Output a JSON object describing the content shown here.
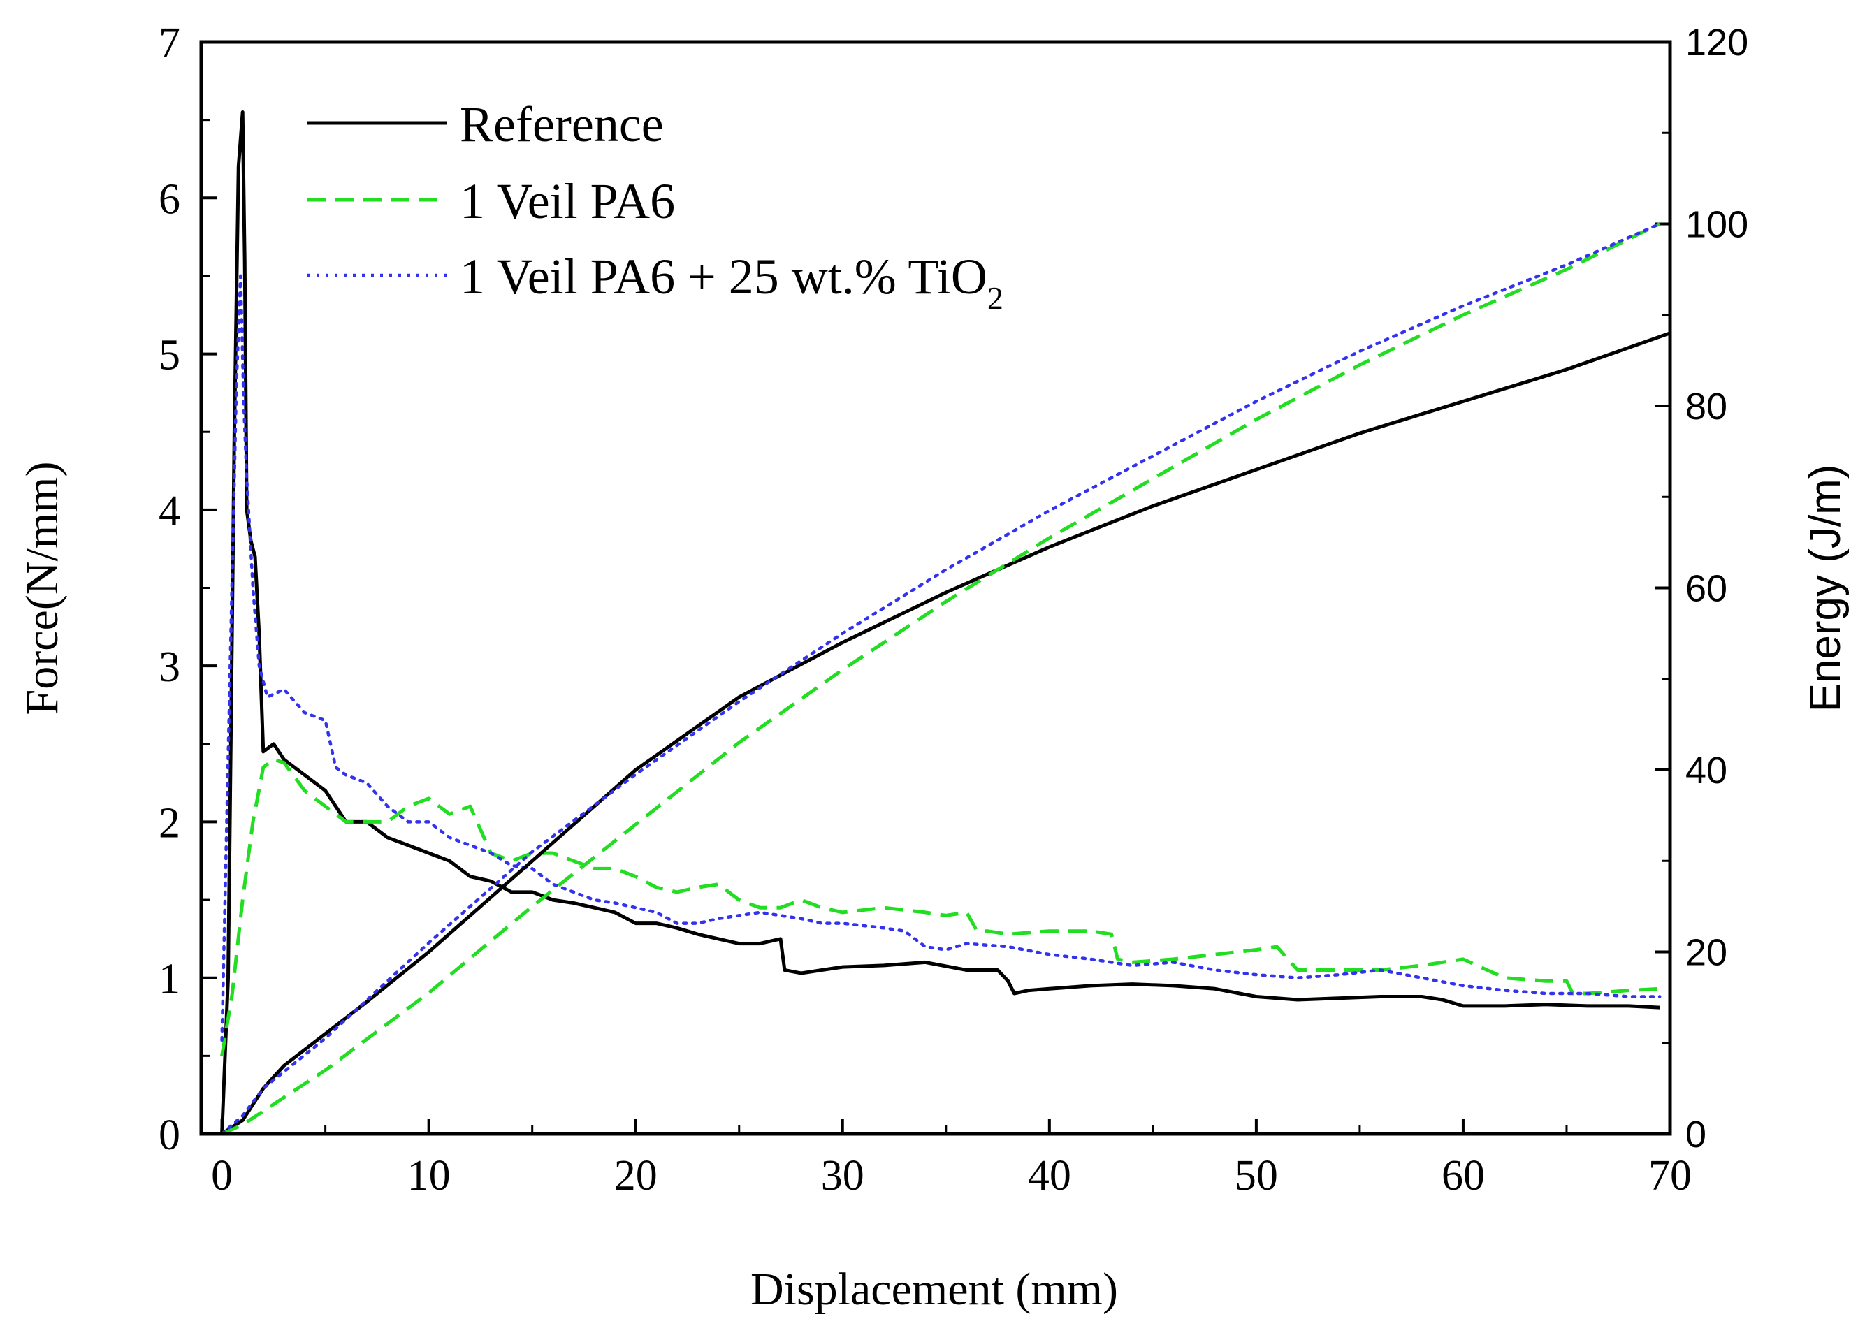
{
  "chart_data": {
    "type": "line",
    "xlabel": "Displacement (mm)",
    "ylabel": "Force(N/mm)",
    "y2label": "Energy (J/m)",
    "xlim": [
      -1,
      70
    ],
    "ylim": [
      0,
      7
    ],
    "y2lim": [
      0,
      120
    ],
    "xticks": [
      "0",
      "10",
      "20",
      "30",
      "40",
      "50",
      "60",
      "70"
    ],
    "yticks": [
      "0",
      "1",
      "2",
      "3",
      "4",
      "5",
      "6",
      "7"
    ],
    "y2ticks": [
      "0",
      "20",
      "40",
      "60",
      "80",
      "100",
      "120"
    ],
    "legend_position": "top-left",
    "legend": [
      {
        "label": "Reference",
        "color": "#000000",
        "style": "solid"
      },
      {
        "label": "1 Veil PA6",
        "color": "#22dd22",
        "style": "dashed"
      },
      {
        "label_main": "1 Veil PA6 + 25 wt.% TiO",
        "label_sub": "2",
        "color": "#3333ee",
        "style": "dotted"
      }
    ],
    "series": [
      {
        "name": "Reference force",
        "axis": "left",
        "color": "#000000",
        "style": "solid",
        "points": [
          [
            0,
            0
          ],
          [
            0.3,
            1.0
          ],
          [
            0.6,
            4.5
          ],
          [
            0.8,
            6.2
          ],
          [
            1.0,
            6.55
          ],
          [
            1.1,
            5.6
          ],
          [
            1.2,
            4.0
          ],
          [
            1.4,
            3.8
          ],
          [
            1.6,
            3.7
          ],
          [
            1.8,
            3.2
          ],
          [
            2.0,
            2.45
          ],
          [
            2.5,
            2.5
          ],
          [
            3.0,
            2.4
          ],
          [
            4.0,
            2.3
          ],
          [
            5.0,
            2.2
          ],
          [
            6.0,
            2.0
          ],
          [
            7.0,
            2.0
          ],
          [
            8.0,
            1.9
          ],
          [
            9.0,
            1.85
          ],
          [
            10.0,
            1.8
          ],
          [
            11.0,
            1.75
          ],
          [
            12.0,
            1.65
          ],
          [
            13.0,
            1.62
          ],
          [
            14.0,
            1.55
          ],
          [
            15.0,
            1.55
          ],
          [
            16.0,
            1.5
          ],
          [
            17.0,
            1.48
          ],
          [
            18.0,
            1.45
          ],
          [
            19.0,
            1.42
          ],
          [
            20.0,
            1.35
          ],
          [
            21.0,
            1.35
          ],
          [
            22.0,
            1.32
          ],
          [
            23.0,
            1.28
          ],
          [
            24.0,
            1.25
          ],
          [
            25.0,
            1.22
          ],
          [
            26.0,
            1.22
          ],
          [
            27.0,
            1.25
          ],
          [
            27.2,
            1.05
          ],
          [
            28.0,
            1.03
          ],
          [
            29.0,
            1.05
          ],
          [
            30.0,
            1.07
          ],
          [
            32.0,
            1.08
          ],
          [
            34.0,
            1.1
          ],
          [
            36.0,
            1.05
          ],
          [
            37.5,
            1.05
          ],
          [
            38.0,
            0.98
          ],
          [
            38.3,
            0.9
          ],
          [
            39.0,
            0.92
          ],
          [
            40.0,
            0.93
          ],
          [
            42.0,
            0.95
          ],
          [
            44.0,
            0.96
          ],
          [
            46.0,
            0.95
          ],
          [
            48.0,
            0.93
          ],
          [
            50.0,
            0.88
          ],
          [
            52.0,
            0.86
          ],
          [
            54.0,
            0.87
          ],
          [
            56.0,
            0.88
          ],
          [
            58.0,
            0.88
          ],
          [
            59.0,
            0.86
          ],
          [
            60.0,
            0.82
          ],
          [
            62.0,
            0.82
          ],
          [
            64.0,
            0.83
          ],
          [
            66.0,
            0.82
          ],
          [
            68.0,
            0.82
          ],
          [
            69.5,
            0.81
          ]
        ]
      },
      {
        "name": "1 Veil PA6 force",
        "axis": "left",
        "color": "#22dd22",
        "style": "dashed",
        "points": [
          [
            0,
            0.5
          ],
          [
            0.5,
            0.9
          ],
          [
            1.0,
            1.5
          ],
          [
            1.5,
            2.0
          ],
          [
            2.0,
            2.35
          ],
          [
            2.5,
            2.4
          ],
          [
            3.0,
            2.38
          ],
          [
            4.0,
            2.2
          ],
          [
            5.0,
            2.1
          ],
          [
            6.0,
            2.0
          ],
          [
            7.0,
            2.0
          ],
          [
            8.0,
            2.0
          ],
          [
            9.0,
            2.1
          ],
          [
            10.0,
            2.15
          ],
          [
            11.0,
            2.05
          ],
          [
            12.0,
            2.1
          ],
          [
            13.0,
            1.8
          ],
          [
            14.0,
            1.75
          ],
          [
            15.0,
            1.8
          ],
          [
            16.0,
            1.8
          ],
          [
            17.0,
            1.75
          ],
          [
            18.0,
            1.7
          ],
          [
            19.0,
            1.7
          ],
          [
            20.0,
            1.65
          ],
          [
            21.0,
            1.58
          ],
          [
            22.0,
            1.55
          ],
          [
            23.0,
            1.58
          ],
          [
            24.0,
            1.6
          ],
          [
            25.0,
            1.5
          ],
          [
            26.0,
            1.45
          ],
          [
            27.0,
            1.45
          ],
          [
            28.0,
            1.5
          ],
          [
            29.0,
            1.45
          ],
          [
            30.0,
            1.42
          ],
          [
            32.0,
            1.45
          ],
          [
            34.0,
            1.42
          ],
          [
            35.0,
            1.4
          ],
          [
            36.0,
            1.42
          ],
          [
            36.5,
            1.3
          ],
          [
            37.0,
            1.3
          ],
          [
            38.0,
            1.28
          ],
          [
            40.0,
            1.3
          ],
          [
            42.0,
            1.3
          ],
          [
            43.0,
            1.28
          ],
          [
            43.3,
            1.12
          ],
          [
            44.0,
            1.1
          ],
          [
            46.0,
            1.12
          ],
          [
            48.0,
            1.15
          ],
          [
            50.0,
            1.18
          ],
          [
            51.0,
            1.2
          ],
          [
            52.0,
            1.05
          ],
          [
            54.0,
            1.05
          ],
          [
            56.0,
            1.05
          ],
          [
            58.0,
            1.08
          ],
          [
            60.0,
            1.12
          ],
          [
            62.0,
            1.0
          ],
          [
            64.0,
            0.98
          ],
          [
            65.0,
            0.98
          ],
          [
            65.3,
            0.9
          ],
          [
            66.0,
            0.9
          ],
          [
            68.0,
            0.92
          ],
          [
            69.5,
            0.93
          ]
        ]
      },
      {
        "name": "1 Veil PA6 + 25 wt.% TiO2 force",
        "axis": "left",
        "color": "#3333ee",
        "style": "dotted",
        "points": [
          [
            0,
            0.6
          ],
          [
            0.4,
            3.0
          ],
          [
            0.7,
            4.8
          ],
          [
            0.9,
            5.5
          ],
          [
            1.05,
            4.7
          ],
          [
            1.2,
            4.2
          ],
          [
            1.5,
            3.5
          ],
          [
            1.8,
            3.0
          ],
          [
            2.2,
            2.8
          ],
          [
            3.0,
            2.85
          ],
          [
            4.0,
            2.7
          ],
          [
            5.0,
            2.65
          ],
          [
            5.5,
            2.35
          ],
          [
            6.0,
            2.3
          ],
          [
            7.0,
            2.25
          ],
          [
            8.0,
            2.1
          ],
          [
            9.0,
            2.0
          ],
          [
            10.0,
            2.0
          ],
          [
            11.0,
            1.9
          ],
          [
            12.0,
            1.85
          ],
          [
            13.0,
            1.8
          ],
          [
            14.0,
            1.72
          ],
          [
            15.0,
            1.7
          ],
          [
            16.0,
            1.6
          ],
          [
            17.0,
            1.55
          ],
          [
            18.0,
            1.5
          ],
          [
            19.0,
            1.48
          ],
          [
            20.0,
            1.45
          ],
          [
            21.0,
            1.42
          ],
          [
            22.0,
            1.35
          ],
          [
            23.0,
            1.35
          ],
          [
            24.0,
            1.38
          ],
          [
            25.0,
            1.4
          ],
          [
            26.0,
            1.42
          ],
          [
            27.0,
            1.4
          ],
          [
            28.0,
            1.38
          ],
          [
            29.0,
            1.35
          ],
          [
            30.0,
            1.35
          ],
          [
            32.0,
            1.32
          ],
          [
            33.0,
            1.3
          ],
          [
            34.0,
            1.2
          ],
          [
            35.0,
            1.18
          ],
          [
            36.0,
            1.22
          ],
          [
            38.0,
            1.2
          ],
          [
            40.0,
            1.15
          ],
          [
            42.0,
            1.12
          ],
          [
            44.0,
            1.08
          ],
          [
            46.0,
            1.1
          ],
          [
            48.0,
            1.05
          ],
          [
            50.0,
            1.02
          ],
          [
            52.0,
            1.0
          ],
          [
            54.0,
            1.02
          ],
          [
            56.0,
            1.05
          ],
          [
            58.0,
            1.0
          ],
          [
            60.0,
            0.95
          ],
          [
            62.0,
            0.92
          ],
          [
            64.0,
            0.9
          ],
          [
            66.0,
            0.9
          ],
          [
            68.0,
            0.88
          ],
          [
            69.5,
            0.88
          ]
        ]
      },
      {
        "name": "Reference energy",
        "axis": "right",
        "color": "#000000",
        "style": "solid",
        "points": [
          [
            0,
            0
          ],
          [
            1,
            1.5
          ],
          [
            2,
            5
          ],
          [
            3,
            7.5
          ],
          [
            5,
            11
          ],
          [
            7,
            14.5
          ],
          [
            10,
            20
          ],
          [
            15,
            30
          ],
          [
            20,
            40
          ],
          [
            25,
            48
          ],
          [
            30,
            54
          ],
          [
            35,
            59.5
          ],
          [
            40,
            64.5
          ],
          [
            45,
            69
          ],
          [
            50,
            73
          ],
          [
            55,
            77
          ],
          [
            60,
            80.5
          ],
          [
            65,
            84
          ],
          [
            70,
            88
          ]
        ]
      },
      {
        "name": "1 Veil PA6 energy",
        "axis": "right",
        "color": "#22dd22",
        "style": "dashed",
        "points": [
          [
            0,
            0
          ],
          [
            1,
            1
          ],
          [
            2,
            2.5
          ],
          [
            5,
            7
          ],
          [
            10,
            15.5
          ],
          [
            15,
            25
          ],
          [
            20,
            34
          ],
          [
            25,
            43
          ],
          [
            30,
            51
          ],
          [
            35,
            58.5
          ],
          [
            40,
            65.5
          ],
          [
            45,
            72
          ],
          [
            50,
            78.5
          ],
          [
            55,
            84.5
          ],
          [
            60,
            90
          ],
          [
            65,
            95
          ],
          [
            69.5,
            100
          ]
        ]
      },
      {
        "name": "1 Veil PA6 + 25 wt.% TiO2 energy",
        "axis": "right",
        "color": "#3333ee",
        "style": "dotted",
        "points": [
          [
            0,
            0
          ],
          [
            1,
            2
          ],
          [
            2,
            5
          ],
          [
            5,
            10.5
          ],
          [
            10,
            21
          ],
          [
            15,
            31
          ],
          [
            20,
            39.5
          ],
          [
            25,
            47.5
          ],
          [
            30,
            55
          ],
          [
            35,
            62
          ],
          [
            40,
            68.5
          ],
          [
            45,
            74.5
          ],
          [
            50,
            80.5
          ],
          [
            55,
            86
          ],
          [
            60,
            91
          ],
          [
            65,
            95.5
          ],
          [
            69.5,
            100
          ]
        ]
      }
    ]
  }
}
